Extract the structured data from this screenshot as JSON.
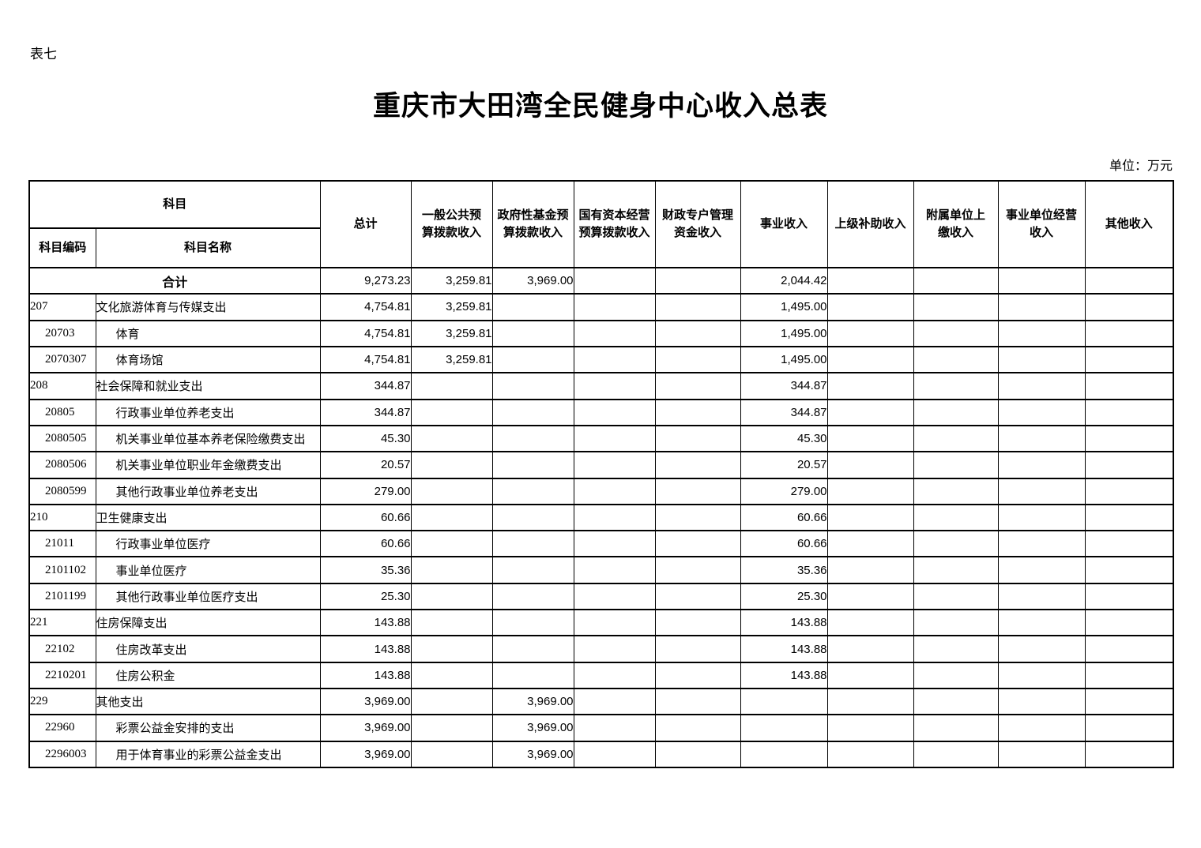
{
  "page": {
    "sheet_label": "表七",
    "title": "重庆市大田湾全民健身中心收入总表",
    "unit_note": "单位：万元"
  },
  "table": {
    "header": {
      "subject_group": "科目",
      "subject_code": "科目编码",
      "subject_name": "科目名称",
      "amount_columns": [
        "总计",
        "一般公共预\n算拨款收入",
        "政府性基金预\n算拨款收入",
        "国有资本经营\n预算拨款收入",
        "财政专户管理\n资金收入",
        "事业收入",
        "上级补助收入",
        "附属单位上\n缴收入",
        "事业单位经营\n收入",
        "其他收入"
      ]
    },
    "total_row": {
      "label": "合计",
      "values": [
        "9,273.23",
        "3,259.81",
        "3,969.00",
        "",
        "",
        "2,044.42",
        "",
        "",
        "",
        ""
      ]
    },
    "rows": [
      {
        "code": "207",
        "name": "文化旅游体育与传媒支出",
        "level": 1,
        "values": [
          "4,754.81",
          "3,259.81",
          "",
          "",
          "",
          "1,495.00",
          "",
          "",
          "",
          ""
        ]
      },
      {
        "code": "20703",
        "name": "体育",
        "level": 2,
        "values": [
          "4,754.81",
          "3,259.81",
          "",
          "",
          "",
          "1,495.00",
          "",
          "",
          "",
          ""
        ]
      },
      {
        "code": "2070307",
        "name": "体育场馆",
        "level": 3,
        "values": [
          "4,754.81",
          "3,259.81",
          "",
          "",
          "",
          "1,495.00",
          "",
          "",
          "",
          ""
        ]
      },
      {
        "code": "208",
        "name": "社会保障和就业支出",
        "level": 1,
        "values": [
          "344.87",
          "",
          "",
          "",
          "",
          "344.87",
          "",
          "",
          "",
          ""
        ]
      },
      {
        "code": "20805",
        "name": "行政事业单位养老支出",
        "level": 2,
        "values": [
          "344.87",
          "",
          "",
          "",
          "",
          "344.87",
          "",
          "",
          "",
          ""
        ]
      },
      {
        "code": "2080505",
        "name": "机关事业单位基本养老保险缴费支出",
        "level": 3,
        "values": [
          "45.30",
          "",
          "",
          "",
          "",
          "45.30",
          "",
          "",
          "",
          ""
        ]
      },
      {
        "code": "2080506",
        "name": "机关事业单位职业年金缴费支出",
        "level": 3,
        "values": [
          "20.57",
          "",
          "",
          "",
          "",
          "20.57",
          "",
          "",
          "",
          ""
        ]
      },
      {
        "code": "2080599",
        "name": "其他行政事业单位养老支出",
        "level": 3,
        "values": [
          "279.00",
          "",
          "",
          "",
          "",
          "279.00",
          "",
          "",
          "",
          ""
        ]
      },
      {
        "code": "210",
        "name": "卫生健康支出",
        "level": 1,
        "values": [
          "60.66",
          "",
          "",
          "",
          "",
          "60.66",
          "",
          "",
          "",
          ""
        ]
      },
      {
        "code": "21011",
        "name": "行政事业单位医疗",
        "level": 2,
        "values": [
          "60.66",
          "",
          "",
          "",
          "",
          "60.66",
          "",
          "",
          "",
          ""
        ]
      },
      {
        "code": "2101102",
        "name": "事业单位医疗",
        "level": 3,
        "values": [
          "35.36",
          "",
          "",
          "",
          "",
          "35.36",
          "",
          "",
          "",
          ""
        ]
      },
      {
        "code": "2101199",
        "name": "其他行政事业单位医疗支出",
        "level": 3,
        "values": [
          "25.30",
          "",
          "",
          "",
          "",
          "25.30",
          "",
          "",
          "",
          ""
        ]
      },
      {
        "code": "221",
        "name": "住房保障支出",
        "level": 1,
        "values": [
          "143.88",
          "",
          "",
          "",
          "",
          "143.88",
          "",
          "",
          "",
          ""
        ]
      },
      {
        "code": "22102",
        "name": "住房改革支出",
        "level": 2,
        "values": [
          "143.88",
          "",
          "",
          "",
          "",
          "143.88",
          "",
          "",
          "",
          ""
        ]
      },
      {
        "code": "2210201",
        "name": "住房公积金",
        "level": 3,
        "values": [
          "143.88",
          "",
          "",
          "",
          "",
          "143.88",
          "",
          "",
          "",
          ""
        ]
      },
      {
        "code": "229",
        "name": "其他支出",
        "level": 1,
        "values": [
          "3,969.00",
          "",
          "3,969.00",
          "",
          "",
          "",
          "",
          "",
          "",
          ""
        ]
      },
      {
        "code": "22960",
        "name": "彩票公益金安排的支出",
        "level": 2,
        "values": [
          "3,969.00",
          "",
          "3,969.00",
          "",
          "",
          "",
          "",
          "",
          "",
          ""
        ]
      },
      {
        "code": "2296003",
        "name": "用于体育事业的彩票公益金支出",
        "level": 3,
        "values": [
          "3,969.00",
          "",
          "3,969.00",
          "",
          "",
          "",
          "",
          "",
          "",
          ""
        ]
      }
    ]
  }
}
